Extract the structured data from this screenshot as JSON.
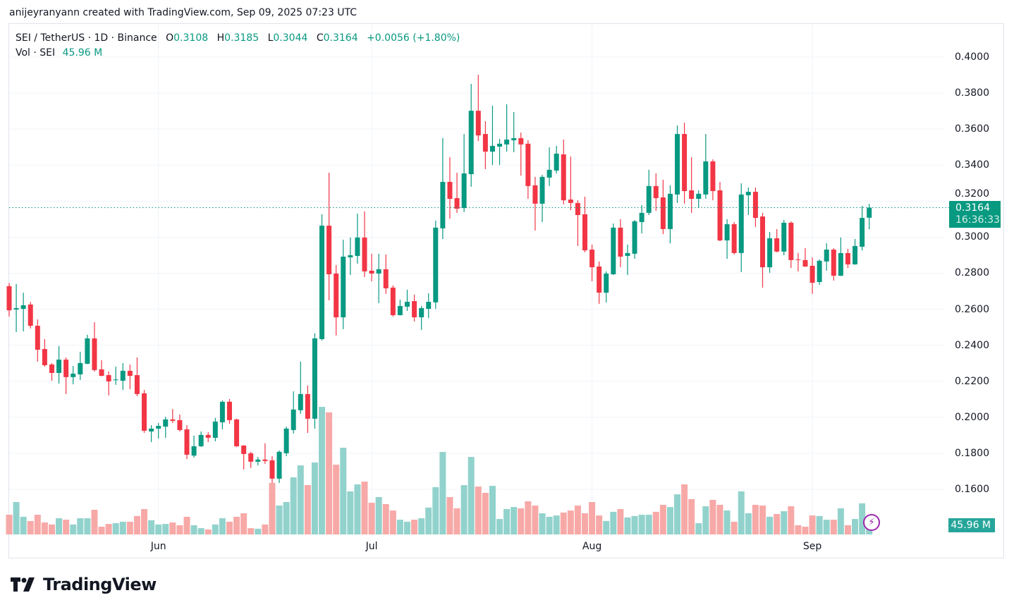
{
  "credit": "anijeyranyann created with TradingView.com, Sep 09, 2025 07:23 UTC",
  "legend": {
    "symbol": "SEI / TetherUS · 1D · Binance",
    "open_label": "O",
    "open": "0.3108",
    "high_label": "H",
    "high": "0.3185",
    "low_label": "L",
    "low": "0.3044",
    "close_label": "C",
    "close": "0.3164",
    "change": "+0.0056 (+1.80%)",
    "volume_label": "Vol · SEI",
    "volume": "45.96 M"
  },
  "price_tag": {
    "price": "0.3164",
    "countdown": "16:36:33"
  },
  "volume_tag": "45.96 M",
  "logo_text": "TradingView",
  "colors": {
    "up": "#089981",
    "down": "#F23645",
    "volume_up": "#92D2CC",
    "volume_down": "#F7A9A7",
    "alert_icon": "#9c27b0"
  },
  "icons": {
    "alert": "lightning-bolt-icon",
    "logo": "tradingview-logo-icon"
  },
  "chart_data": {
    "type": "candlestick",
    "interval": "1D",
    "volume_unit": "M",
    "ylim": [
      0.15,
      0.41
    ],
    "y_ticks": [
      "0.4000",
      "0.3800",
      "0.3600",
      "0.3400",
      "0.3200",
      "0.3000",
      "0.2800",
      "0.2600",
      "0.2400",
      "0.2200",
      "0.2000",
      "0.1800",
      "0.1600"
    ],
    "x_ticks": [
      {
        "label": "Jun",
        "date": "2025-06-01"
      },
      {
        "label": "Jul",
        "date": "2025-07-01"
      },
      {
        "label": "Aug",
        "date": "2025-08-01"
      },
      {
        "label": "Sep",
        "date": "2025-09-01"
      }
    ],
    "grid": true,
    "last_price": 0.3164,
    "columns": [
      "date",
      "open",
      "high",
      "low",
      "close",
      "volume"
    ],
    "candles": [
      [
        "2025-05-11",
        0.2728,
        0.2745,
        0.256,
        0.2594,
        107
      ],
      [
        "2025-05-12",
        0.2598,
        0.274,
        0.2473,
        0.2606,
        176
      ],
      [
        "2025-05-13",
        0.2602,
        0.2692,
        0.2477,
        0.2622,
        96
      ],
      [
        "2025-05-14",
        0.2626,
        0.2641,
        0.2493,
        0.2508,
        73
      ],
      [
        "2025-05-15",
        0.2508,
        0.2544,
        0.2309,
        0.2375,
        107
      ],
      [
        "2025-05-16",
        0.2379,
        0.2434,
        0.2281,
        0.2289,
        65
      ],
      [
        "2025-05-17",
        0.2293,
        0.2301,
        0.2203,
        0.2246,
        54
      ],
      [
        "2025-05-18",
        0.2246,
        0.2395,
        0.2187,
        0.232,
        88
      ],
      [
        "2025-05-19",
        0.232,
        0.2332,
        0.2129,
        0.2223,
        80
      ],
      [
        "2025-05-20",
        0.2223,
        0.2285,
        0.2183,
        0.2242,
        54
      ],
      [
        "2025-05-21",
        0.2238,
        0.2364,
        0.2207,
        0.2301,
        88
      ],
      [
        "2025-05-22",
        0.2297,
        0.2458,
        0.2295,
        0.2438,
        88
      ],
      [
        "2025-05-23",
        0.2438,
        0.2528,
        0.2254,
        0.2262,
        134
      ],
      [
        "2025-05-24",
        0.2266,
        0.2317,
        0.2227,
        0.223,
        42
      ],
      [
        "2025-05-25",
        0.2234,
        0.2254,
        0.2121,
        0.2199,
        57
      ],
      [
        "2025-05-26",
        0.2206,
        0.2281,
        0.218,
        0.221,
        61
      ],
      [
        "2025-05-27",
        0.2203,
        0.2301,
        0.2152,
        0.2258,
        69
      ],
      [
        "2025-05-28",
        0.2258,
        0.2293,
        0.2156,
        0.223,
        69
      ],
      [
        "2025-05-29",
        0.2234,
        0.2332,
        0.2117,
        0.2129,
        100
      ],
      [
        "2025-05-30",
        0.2133,
        0.2152,
        0.1913,
        0.1925,
        138
      ],
      [
        "2025-05-31",
        0.1921,
        0.1956,
        0.1862,
        0.1937,
        77
      ],
      [
        "2025-06-01",
        0.1937,
        0.1968,
        0.1882,
        0.1952,
        54
      ],
      [
        "2025-06-02",
        0.1948,
        0.2003,
        0.1886,
        0.1988,
        57
      ],
      [
        "2025-06-03",
        0.1988,
        0.2046,
        0.1968,
        0.198,
        65
      ],
      [
        "2025-06-04",
        0.1984,
        0.2015,
        0.1921,
        0.1929,
        50
      ],
      [
        "2025-06-05",
        0.1933,
        0.1956,
        0.1768,
        0.1792,
        96
      ],
      [
        "2025-06-06",
        0.1787,
        0.1898,
        0.1776,
        0.1839,
        50
      ],
      [
        "2025-06-07",
        0.1839,
        0.1921,
        0.1835,
        0.1902,
        34
      ],
      [
        "2025-06-08",
        0.1902,
        0.1917,
        0.1862,
        0.1886,
        27
      ],
      [
        "2025-06-09",
        0.1886,
        0.1996,
        0.1866,
        0.1976,
        54
      ],
      [
        "2025-06-10",
        0.1972,
        0.2093,
        0.1933,
        0.2086,
        88
      ],
      [
        "2025-06-11",
        0.2086,
        0.2101,
        0.1964,
        0.1984,
        69
      ],
      [
        "2025-06-12",
        0.1988,
        0.1992,
        0.1835,
        0.1839,
        96
      ],
      [
        "2025-06-13",
        0.1843,
        0.1845,
        0.171,
        0.1796,
        115
      ],
      [
        "2025-06-14",
        0.18,
        0.1808,
        0.1718,
        0.1753,
        34
      ],
      [
        "2025-06-15",
        0.1753,
        0.178,
        0.1733,
        0.1765,
        31
      ],
      [
        "2025-06-16",
        0.1765,
        0.1855,
        0.1741,
        0.1757,
        54
      ],
      [
        "2025-06-17",
        0.1761,
        0.1784,
        0.1635,
        0.1659,
        280
      ],
      [
        "2025-06-18",
        0.1659,
        0.1816,
        0.1635,
        0.1808,
        157
      ],
      [
        "2025-06-19",
        0.18,
        0.1948,
        0.1784,
        0.1937,
        176
      ],
      [
        "2025-06-20",
        0.1929,
        0.2144,
        0.1909,
        0.2043,
        310
      ],
      [
        "2025-06-21",
        0.2039,
        0.2309,
        0.2019,
        0.2129,
        375
      ],
      [
        "2025-06-22",
        0.2129,
        0.2176,
        0.1913,
        0.1992,
        268
      ],
      [
        "2025-06-23",
        0.1992,
        0.2466,
        0.1937,
        0.2438,
        391
      ],
      [
        "2025-06-24",
        0.2434,
        0.3127,
        0.2426,
        0.3064,
        693
      ],
      [
        "2025-06-25",
        0.3064,
        0.3358,
        0.2649,
        0.2794,
        663
      ],
      [
        "2025-06-26",
        0.2798,
        0.2845,
        0.2454,
        0.2555,
        379
      ],
      [
        "2025-06-27",
        0.2555,
        0.2986,
        0.2489,
        0.2892,
        471
      ],
      [
        "2025-06-28",
        0.2888,
        0.2998,
        0.279,
        0.29,
        234
      ],
      [
        "2025-06-29",
        0.2896,
        0.3131,
        0.2853,
        0.2998,
        272
      ],
      [
        "2025-06-30",
        0.2998,
        0.3143,
        0.2779,
        0.281,
        287
      ],
      [
        "2025-07-01",
        0.2814,
        0.2908,
        0.2755,
        0.2798,
        172
      ],
      [
        "2025-07-02",
        0.2798,
        0.2908,
        0.2634,
        0.2822,
        203
      ],
      [
        "2025-07-03",
        0.2822,
        0.2904,
        0.2685,
        0.2716,
        165
      ],
      [
        "2025-07-04",
        0.272,
        0.2732,
        0.2559,
        0.2567,
        130
      ],
      [
        "2025-07-05",
        0.2567,
        0.2653,
        0.2565,
        0.2618,
        80
      ],
      [
        "2025-07-06",
        0.2614,
        0.2708,
        0.2591,
        0.2641,
        69
      ],
      [
        "2025-07-07",
        0.2645,
        0.2681,
        0.2532,
        0.2555,
        80
      ],
      [
        "2025-07-08",
        0.2555,
        0.2618,
        0.2485,
        0.2606,
        88
      ],
      [
        "2025-07-09",
        0.2602,
        0.2689,
        0.2551,
        0.2641,
        146
      ],
      [
        "2025-07-10",
        0.2638,
        0.3092,
        0.2602,
        0.3053,
        257
      ],
      [
        "2025-07-11",
        0.3049,
        0.355,
        0.299,
        0.3307,
        448
      ],
      [
        "2025-07-12",
        0.3307,
        0.3444,
        0.3103,
        0.3213,
        203
      ],
      [
        "2025-07-13",
        0.3217,
        0.3358,
        0.3135,
        0.3158,
        142
      ],
      [
        "2025-07-14",
        0.3162,
        0.3573,
        0.3139,
        0.3354,
        268
      ],
      [
        "2025-07-15",
        0.335,
        0.3851,
        0.328,
        0.3702,
        421
      ],
      [
        "2025-07-16",
        0.3702,
        0.3902,
        0.3534,
        0.3565,
        260
      ],
      [
        "2025-07-17",
        0.3573,
        0.3644,
        0.3378,
        0.3475,
        226
      ],
      [
        "2025-07-18",
        0.3475,
        0.373,
        0.3401,
        0.3507,
        264
      ],
      [
        "2025-07-19",
        0.3503,
        0.3546,
        0.3401,
        0.3519,
        84
      ],
      [
        "2025-07-20",
        0.3515,
        0.3738,
        0.3475,
        0.3542,
        138
      ],
      [
        "2025-07-21",
        0.3538,
        0.3695,
        0.3472,
        0.355,
        149
      ],
      [
        "2025-07-22",
        0.355,
        0.3581,
        0.3342,
        0.3515,
        142
      ],
      [
        "2025-07-23",
        0.3519,
        0.3538,
        0.3213,
        0.3284,
        180
      ],
      [
        "2025-07-24",
        0.3288,
        0.3335,
        0.3037,
        0.3186,
        157
      ],
      [
        "2025-07-25",
        0.3186,
        0.3346,
        0.3084,
        0.3335,
        115
      ],
      [
        "2025-07-26",
        0.3331,
        0.3499,
        0.3284,
        0.3374,
        96
      ],
      [
        "2025-07-27",
        0.337,
        0.3507,
        0.3354,
        0.3464,
        103
      ],
      [
        "2025-07-28",
        0.346,
        0.3542,
        0.3182,
        0.3205,
        119
      ],
      [
        "2025-07-29",
        0.3209,
        0.3448,
        0.315,
        0.319,
        130
      ],
      [
        "2025-07-30",
        0.319,
        0.3205,
        0.2951,
        0.3123,
        157
      ],
      [
        "2025-07-31",
        0.3127,
        0.3225,
        0.2916,
        0.2927,
        115
      ],
      [
        "2025-08-01",
        0.2931,
        0.2959,
        0.2755,
        0.2833,
        176
      ],
      [
        "2025-08-02",
        0.2837,
        0.2865,
        0.263,
        0.2692,
        103
      ],
      [
        "2025-08-03",
        0.2692,
        0.281,
        0.2638,
        0.2798,
        73
      ],
      [
        "2025-08-04",
        0.2794,
        0.3076,
        0.279,
        0.3053,
        123
      ],
      [
        "2025-08-05",
        0.3053,
        0.31,
        0.2833,
        0.2892,
        138
      ],
      [
        "2025-08-06",
        0.2896,
        0.2959,
        0.279,
        0.2912,
        92
      ],
      [
        "2025-08-07",
        0.2908,
        0.3096,
        0.288,
        0.3088,
        100
      ],
      [
        "2025-08-08",
        0.3084,
        0.3178,
        0.3021,
        0.3135,
        107
      ],
      [
        "2025-08-09",
        0.3135,
        0.3374,
        0.3123,
        0.3284,
        107
      ],
      [
        "2025-08-10",
        0.3284,
        0.3354,
        0.3147,
        0.3217,
        123
      ],
      [
        "2025-08-11",
        0.3221,
        0.3319,
        0.3017,
        0.3045,
        161
      ],
      [
        "2025-08-12",
        0.3045,
        0.3288,
        0.2966,
        0.3241,
        149
      ],
      [
        "2025-08-13",
        0.3237,
        0.362,
        0.319,
        0.3573,
        218
      ],
      [
        "2025-08-14",
        0.3573,
        0.3636,
        0.3186,
        0.3256,
        272
      ],
      [
        "2025-08-15",
        0.326,
        0.3444,
        0.3135,
        0.3213,
        192
      ],
      [
        "2025-08-16",
        0.3213,
        0.326,
        0.3162,
        0.3241,
        61
      ],
      [
        "2025-08-17",
        0.3237,
        0.3573,
        0.3213,
        0.3421,
        153
      ],
      [
        "2025-08-18",
        0.3421,
        0.3432,
        0.3205,
        0.3256,
        188
      ],
      [
        "2025-08-19",
        0.326,
        0.3307,
        0.2978,
        0.2982,
        161
      ],
      [
        "2025-08-20",
        0.2982,
        0.31,
        0.288,
        0.3072,
        130
      ],
      [
        "2025-08-21",
        0.3072,
        0.3084,
        0.2904,
        0.2912,
        69
      ],
      [
        "2025-08-22",
        0.2912,
        0.3299,
        0.2806,
        0.3237,
        234
      ],
      [
        "2025-08-23",
        0.3233,
        0.3276,
        0.3123,
        0.3252,
        115
      ],
      [
        "2025-08-24",
        0.3252,
        0.3276,
        0.3057,
        0.3107,
        161
      ],
      [
        "2025-08-25",
        0.3115,
        0.3135,
        0.272,
        0.2833,
        157
      ],
      [
        "2025-08-26",
        0.2833,
        0.3029,
        0.2802,
        0.2994,
        96
      ],
      [
        "2025-08-27",
        0.2994,
        0.3045,
        0.2916,
        0.292,
        111
      ],
      [
        "2025-08-28",
        0.292,
        0.3096,
        0.29,
        0.308,
        126
      ],
      [
        "2025-08-29",
        0.308,
        0.3088,
        0.2829,
        0.2873,
        153
      ],
      [
        "2025-08-30",
        0.2877,
        0.2912,
        0.281,
        0.2873,
        50
      ],
      [
        "2025-08-31",
        0.2873,
        0.2939,
        0.2835,
        0.2837,
        42
      ],
      [
        "2025-09-01",
        0.2841,
        0.2888,
        0.2685,
        0.2747,
        103
      ],
      [
        "2025-09-02",
        0.2751,
        0.2876,
        0.2736,
        0.2869,
        100
      ],
      [
        "2025-09-03",
        0.2865,
        0.2966,
        0.2814,
        0.2931,
        80
      ],
      [
        "2025-09-04",
        0.2931,
        0.2939,
        0.2759,
        0.2786,
        80
      ],
      [
        "2025-09-05",
        0.2786,
        0.2998,
        0.2784,
        0.2912,
        142
      ],
      [
        "2025-09-06",
        0.2912,
        0.2935,
        0.2829,
        0.2849,
        50
      ],
      [
        "2025-09-07",
        0.2849,
        0.299,
        0.2847,
        0.2951,
        84
      ],
      [
        "2025-09-08",
        0.2947,
        0.3174,
        0.2927,
        0.3107,
        169
      ],
      [
        "2025-09-09",
        0.3108,
        0.3185,
        0.3044,
        0.3164,
        45.96
      ]
    ]
  }
}
